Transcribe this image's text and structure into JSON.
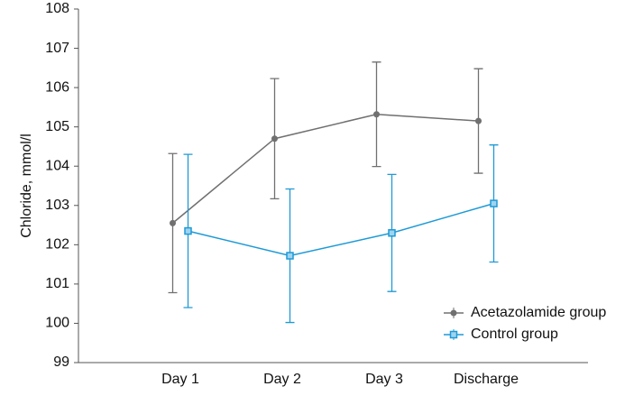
{
  "chart_data": {
    "type": "line",
    "y_label": "Chloride, mmol/l",
    "categories": [
      "Day 1",
      "Day 2",
      "Day 3",
      "Discharge"
    ],
    "series": [
      {
        "name": "Acetazolamide group",
        "color": "#707070",
        "marker": "circle",
        "values": [
          102.55,
          104.7,
          105.32,
          105.15
        ],
        "errors": [
          1.77,
          1.53,
          1.33,
          1.33
        ]
      },
      {
        "name": "Control group",
        "color": "#1e9ad6",
        "marker": "square",
        "values": [
          102.35,
          101.72,
          102.3,
          103.05
        ],
        "errors": [
          1.95,
          1.7,
          1.49,
          1.49
        ]
      }
    ],
    "ylim": [
      99,
      108
    ],
    "yticks": [
      99,
      100,
      101,
      102,
      103,
      104,
      105,
      106,
      107,
      108
    ],
    "grid": false,
    "legend": "lower right"
  }
}
